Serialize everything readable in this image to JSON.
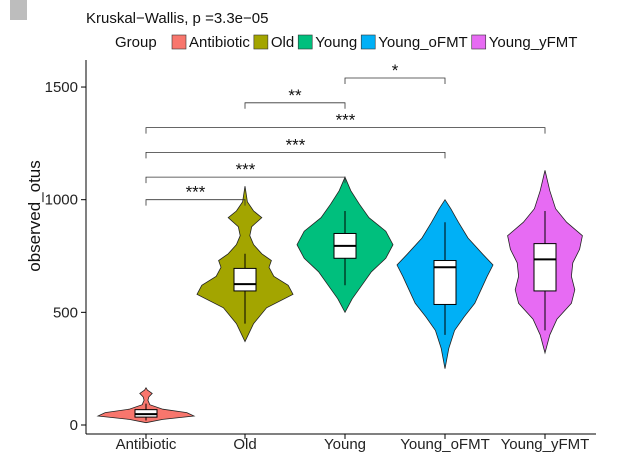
{
  "chart_data": {
    "type": "violin",
    "title": "Kruskal−Wallis, p =3.3e−05",
    "ylabel": "observed_otus",
    "xlabel": "",
    "ylim": [
      -40,
      1620
    ],
    "yticks": [
      0,
      500,
      1000,
      1500
    ],
    "legend": {
      "title": "Group",
      "position": "top"
    },
    "groups": [
      {
        "name": "Antibiotic",
        "color": "#F8766D",
        "box": {
          "q1": 35,
          "median": 48,
          "q3": 68,
          "lower": 20,
          "upper": 95
        },
        "violin": [
          [
            10,
            0
          ],
          [
            25,
            0.35
          ],
          [
            40,
            1
          ],
          [
            55,
            0.85
          ],
          [
            70,
            0.35
          ],
          [
            90,
            0.08
          ],
          [
            110,
            0.04
          ],
          [
            125,
            0.06
          ],
          [
            140,
            0.13
          ],
          [
            155,
            0.03
          ],
          [
            165,
            0
          ]
        ]
      },
      {
        "name": "Old",
        "color": "#A3A500",
        "box": {
          "q1": 595,
          "median": 625,
          "q3": 695,
          "lower": 450,
          "upper": 760
        },
        "violin": [
          [
            370,
            0
          ],
          [
            450,
            0.18
          ],
          [
            520,
            0.45
          ],
          [
            580,
            1
          ],
          [
            620,
            0.9
          ],
          [
            660,
            0.6
          ],
          [
            700,
            0.5
          ],
          [
            730,
            0.55
          ],
          [
            760,
            0.35
          ],
          [
            800,
            0.18
          ],
          [
            840,
            0.1
          ],
          [
            880,
            0.14
          ],
          [
            920,
            0.35
          ],
          [
            950,
            0.18
          ],
          [
            990,
            0.05
          ],
          [
            1060,
            0
          ]
        ]
      },
      {
        "name": "Young",
        "color": "#00BF7D",
        "box": {
          "q1": 740,
          "median": 795,
          "q3": 850,
          "lower": 620,
          "upper": 950
        },
        "violin": [
          [
            500,
            0
          ],
          [
            560,
            0.15
          ],
          [
            620,
            0.35
          ],
          [
            680,
            0.55
          ],
          [
            740,
            0.85
          ],
          [
            800,
            1
          ],
          [
            860,
            0.85
          ],
          [
            920,
            0.5
          ],
          [
            980,
            0.3
          ],
          [
            1040,
            0.12
          ],
          [
            1100,
            0
          ]
        ]
      },
      {
        "name": "Young_oFMT",
        "color": "#00B0F6",
        "box": {
          "q1": 535,
          "median": 700,
          "q3": 730,
          "lower": 400,
          "upper": 900
        },
        "violin": [
          [
            250,
            0
          ],
          [
            340,
            0.08
          ],
          [
            420,
            0.2
          ],
          [
            480,
            0.4
          ],
          [
            540,
            0.62
          ],
          [
            600,
            0.75
          ],
          [
            660,
            0.88
          ],
          [
            710,
            1
          ],
          [
            760,
            0.78
          ],
          [
            830,
            0.48
          ],
          [
            900,
            0.28
          ],
          [
            960,
            0.12
          ],
          [
            1000,
            0
          ]
        ]
      },
      {
        "name": "Young_yFMT",
        "color": "#E76BF3",
        "box": {
          "q1": 595,
          "median": 735,
          "q3": 805,
          "lower": 420,
          "upper": 950
        },
        "violin": [
          [
            320,
            0
          ],
          [
            400,
            0.1
          ],
          [
            470,
            0.25
          ],
          [
            540,
            0.55
          ],
          [
            600,
            0.62
          ],
          [
            660,
            0.55
          ],
          [
            720,
            0.58
          ],
          [
            780,
            0.72
          ],
          [
            840,
            0.78
          ],
          [
            900,
            0.45
          ],
          [
            960,
            0.22
          ],
          [
            1040,
            0.1
          ],
          [
            1130,
            0
          ]
        ]
      }
    ],
    "significance": [
      {
        "from": 0,
        "to": 1,
        "y": 1000,
        "label": "***"
      },
      {
        "from": 0,
        "to": 2,
        "y": 1100,
        "label": "***"
      },
      {
        "from": 0,
        "to": 3,
        "y": 1210,
        "label": "***"
      },
      {
        "from": 0,
        "to": 4,
        "y": 1320,
        "label": "***"
      },
      {
        "from": 1,
        "to": 2,
        "y": 1430,
        "label": "**"
      },
      {
        "from": 2,
        "to": 3,
        "y": 1540,
        "label": "*"
      }
    ]
  },
  "ui": {
    "panel_marker_color": "#BDBDBD"
  }
}
